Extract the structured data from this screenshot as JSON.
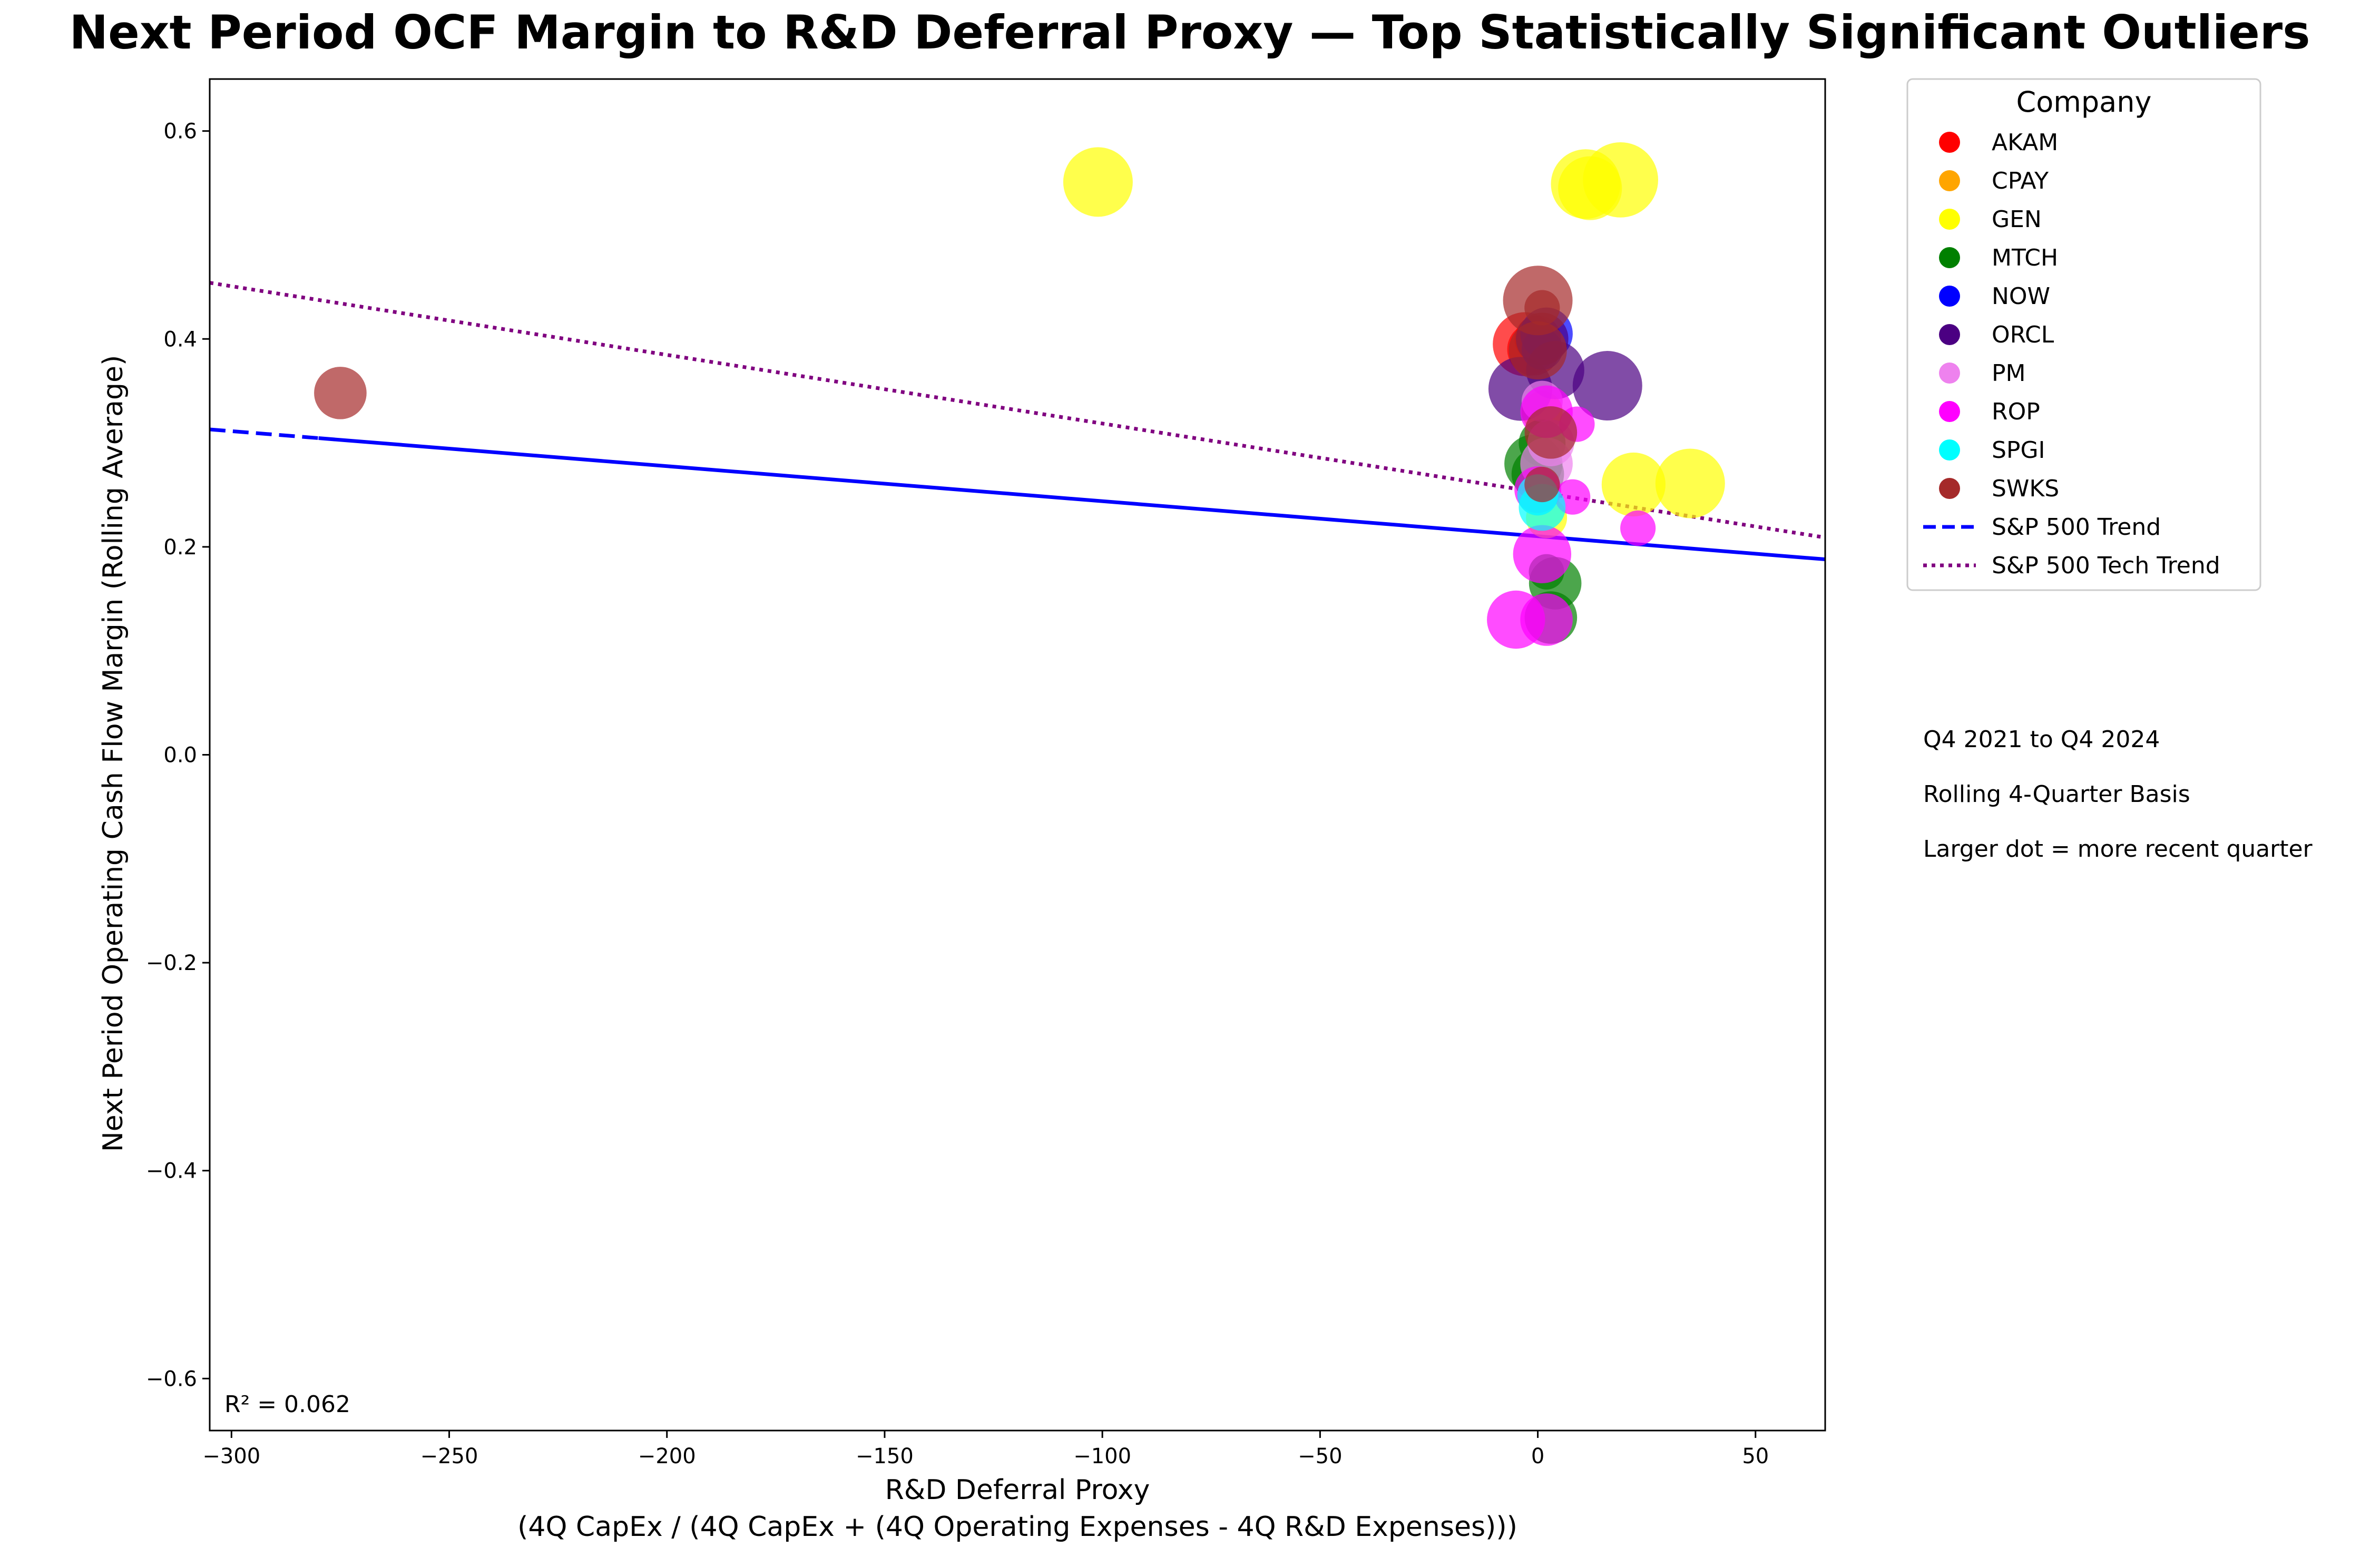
{
  "chart_data": {
    "type": "scatter",
    "title": "Next Period OCF Margin to R&D Deferral Proxy — Top Statistically Significant Outliers",
    "xlabel": "R&D Deferral Proxy",
    "xlabel_line2": "(4Q CapEx / (4Q CapEx + (4Q Operating Expenses - 4Q R&D Expenses)))",
    "ylabel": "Next Period Operating Cash Flow Margin (Rolling Average)",
    "xlim": [
      -305,
      66
    ],
    "ylim": [
      -0.65,
      0.65
    ],
    "xticks": [
      -300,
      -250,
      -200,
      -150,
      -100,
      -50,
      0,
      50
    ],
    "xtick_labels": [
      "−300",
      "−250",
      "−200",
      "−150",
      "−100",
      "−50",
      "0",
      "50"
    ],
    "yticks": [
      0.6,
      0.4,
      0.2,
      0.0,
      -0.2,
      -0.4,
      -0.6
    ],
    "ytick_labels": [
      "0.6",
      "0.4",
      "0.2",
      "0.0",
      "−0.2",
      "−0.4",
      "−0.6"
    ],
    "grid": false,
    "legend": {
      "title": "Company",
      "placement": "outside-right-top",
      "items": [
        {
          "label": "AKAM",
          "color": "#ff0000",
          "kind": "dot"
        },
        {
          "label": "CPAY",
          "color": "#ffa500",
          "kind": "dot"
        },
        {
          "label": "GEN",
          "color": "#ffff00",
          "kind": "dot"
        },
        {
          "label": "MTCH",
          "color": "#008000",
          "kind": "dot"
        },
        {
          "label": "NOW",
          "color": "#0000ff",
          "kind": "dot"
        },
        {
          "label": "ORCL",
          "color": "#4b0082",
          "kind": "dot"
        },
        {
          "label": "PM",
          "color": "#ee82ee",
          "kind": "dot"
        },
        {
          "label": "ROP",
          "color": "#ff00ff",
          "kind": "dot"
        },
        {
          "label": "SPGI",
          "color": "#00ffff",
          "kind": "dot"
        },
        {
          "label": "SWKS",
          "color": "#a52a2a",
          "kind": "dot"
        },
        {
          "label": "S&P 500 Trend",
          "color": "#0000ff",
          "kind": "dashed"
        },
        {
          "label": "S&P 500 Tech Trend",
          "color": "#800080",
          "kind": "dotted"
        }
      ]
    },
    "trend_lines": [
      {
        "name": "S&P 500 Trend",
        "color": "#0000ff",
        "style": "solid-with-dashed-start",
        "points": [
          [
            -305,
            0.313
          ],
          [
            66,
            0.188
          ]
        ]
      },
      {
        "name": "S&P 500 Tech Trend",
        "color": "#800080",
        "style": "dotted",
        "points": [
          [
            -305,
            0.454
          ],
          [
            66,
            0.209
          ]
        ]
      }
    ],
    "r_squared_label": "R² = 0.062",
    "notes": [
      "Q4 2021 to Q4 2024",
      "Rolling 4-Quarter Basis",
      "Larger dot = more recent quarter"
    ],
    "size_encoding": "larger dot = more recent quarter",
    "series": [
      {
        "name": "AKAM",
        "color": "#ff0000",
        "points": [
          {
            "x": -3,
            "y": 0.395,
            "s": 9
          },
          {
            "x": -1,
            "y": 0.39,
            "s": 7
          },
          {
            "x": 0,
            "y": 0.4,
            "s": 6
          }
        ]
      },
      {
        "name": "CPAY",
        "color": "#ffa500",
        "points": [
          {
            "x": 1,
            "y": 0.33,
            "s": 5
          }
        ]
      },
      {
        "name": "GEN",
        "color": "#ffff00",
        "points": [
          {
            "x": -101,
            "y": 0.551,
            "s": 10
          },
          {
            "x": 19,
            "y": 0.553,
            "s": 11
          },
          {
            "x": 11,
            "y": 0.549,
            "s": 10
          },
          {
            "x": 12,
            "y": 0.545,
            "s": 9
          },
          {
            "x": 22,
            "y": 0.26,
            "s": 9
          },
          {
            "x": 35,
            "y": 0.261,
            "s": 10
          },
          {
            "x": 2,
            "y": 0.228,
            "s": 5
          }
        ]
      },
      {
        "name": "MTCH",
        "color": "#008000",
        "points": [
          {
            "x": -1,
            "y": 0.28,
            "s": 8
          },
          {
            "x": 0,
            "y": 0.27,
            "s": 7
          },
          {
            "x": 1,
            "y": 0.3,
            "s": 6
          },
          {
            "x": 4,
            "y": 0.165,
            "s": 7
          },
          {
            "x": 3,
            "y": 0.132,
            "s": 7
          },
          {
            "x": 2,
            "y": 0.176,
            "s": 4
          }
        ]
      },
      {
        "name": "NOW",
        "color": "#0000ff",
        "points": [
          {
            "x": 2,
            "y": 0.405,
            "s": 7
          },
          {
            "x": 1,
            "y": 0.39,
            "s": 5
          }
        ]
      },
      {
        "name": "ORCL",
        "color": "#4b0082",
        "points": [
          {
            "x": -4,
            "y": 0.352,
            "s": 9
          },
          {
            "x": 16,
            "y": 0.355,
            "s": 10
          },
          {
            "x": 4,
            "y": 0.37,
            "s": 8
          },
          {
            "x": 1,
            "y": 0.4,
            "s": 7
          }
        ]
      },
      {
        "name": "PM",
        "color": "#ee82ee",
        "points": [
          {
            "x": 2,
            "y": 0.28,
            "s": 7
          },
          {
            "x": 3,
            "y": 0.3,
            "s": 6
          },
          {
            "x": 1,
            "y": 0.34,
            "s": 5
          },
          {
            "x": 0,
            "y": 0.25,
            "s": 5
          }
        ]
      },
      {
        "name": "ROP",
        "color": "#ff00ff",
        "points": [
          {
            "x": -5,
            "y": 0.13,
            "s": 8
          },
          {
            "x": 2,
            "y": 0.13,
            "s": 7
          },
          {
            "x": 1,
            "y": 0.193,
            "s": 8
          },
          {
            "x": 0,
            "y": 0.255,
            "s": 6
          },
          {
            "x": 8,
            "y": 0.248,
            "s": 4
          },
          {
            "x": 23,
            "y": 0.218,
            "s": 4
          },
          {
            "x": 9,
            "y": 0.318,
            "s": 4
          },
          {
            "x": 2,
            "y": 0.33,
            "s": 7
          }
        ]
      },
      {
        "name": "SPGI",
        "color": "#00ffff",
        "points": [
          {
            "x": 1,
            "y": 0.238,
            "s": 6
          },
          {
            "x": 0,
            "y": 0.25,
            "s": 5
          }
        ]
      },
      {
        "name": "SWKS",
        "color": "#a52a2a",
        "points": [
          {
            "x": -275,
            "y": 0.348,
            "s": 7
          },
          {
            "x": 0,
            "y": 0.437,
            "s": 10
          },
          {
            "x": 1,
            "y": 0.43,
            "s": 4
          },
          {
            "x": 0,
            "y": 0.389,
            "s": 8
          },
          {
            "x": 3,
            "y": 0.31,
            "s": 7
          },
          {
            "x": 1,
            "y": 0.26,
            "s": 4
          }
        ]
      }
    ]
  }
}
